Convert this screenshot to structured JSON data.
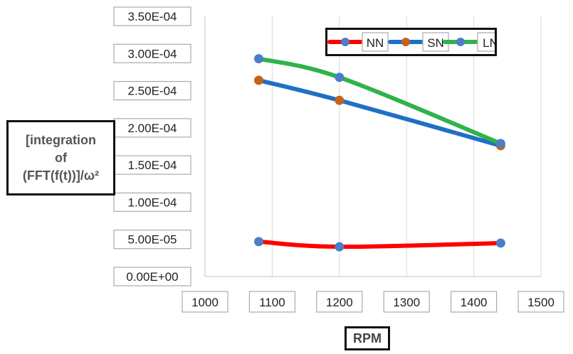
{
  "chart_data": {
    "type": "line",
    "title": "",
    "xlabel": "RPM",
    "ylabel": "[integration of (FFT(f(t))]/ω²",
    "ylabel_lines": [
      "[integration",
      "of",
      "(FFT(f(t))]/ω²"
    ],
    "xlim": [
      1000,
      1500
    ],
    "ylim": [
      0,
      0.00035
    ],
    "x_ticks": [
      1000,
      1100,
      1200,
      1300,
      1400,
      1500
    ],
    "x_tick_labels": [
      "1000",
      "1100",
      "1200",
      "1300",
      "1400",
      "1500"
    ],
    "y_ticks": [
      0,
      5e-05,
      0.0001,
      0.00015,
      0.0002,
      0.00025,
      0.0003,
      0.00035
    ],
    "y_tick_labels": [
      "0.00E+00",
      "5.00E-05",
      "1.00E-04",
      "1.50E-04",
      "2.00E-04",
      "2.50E-04",
      "3.00E-04",
      "3.50E-04"
    ],
    "grid": {
      "vertical": true,
      "horizontal": false
    },
    "legend_position": "top-right",
    "series": [
      {
        "name": "NN",
        "line_color": "#ff0000",
        "marker_color": "#4a7ec7",
        "x": [
          1080,
          1200,
          1440
        ],
        "y": [
          4.7e-05,
          4e-05,
          4.5e-05
        ]
      },
      {
        "name": "SN",
        "line_color": "#1f6fc6",
        "marker_color": "#c0651c",
        "x": [
          1080,
          1200,
          1440
        ],
        "y": [
          0.000264,
          0.000237,
          0.000176
        ]
      },
      {
        "name": "LN",
        "line_color": "#2fb34a",
        "marker_color": "#4a7ec7",
        "x": [
          1080,
          1200,
          1440
        ],
        "y": [
          0.000293,
          0.000268,
          0.000179
        ]
      }
    ]
  }
}
